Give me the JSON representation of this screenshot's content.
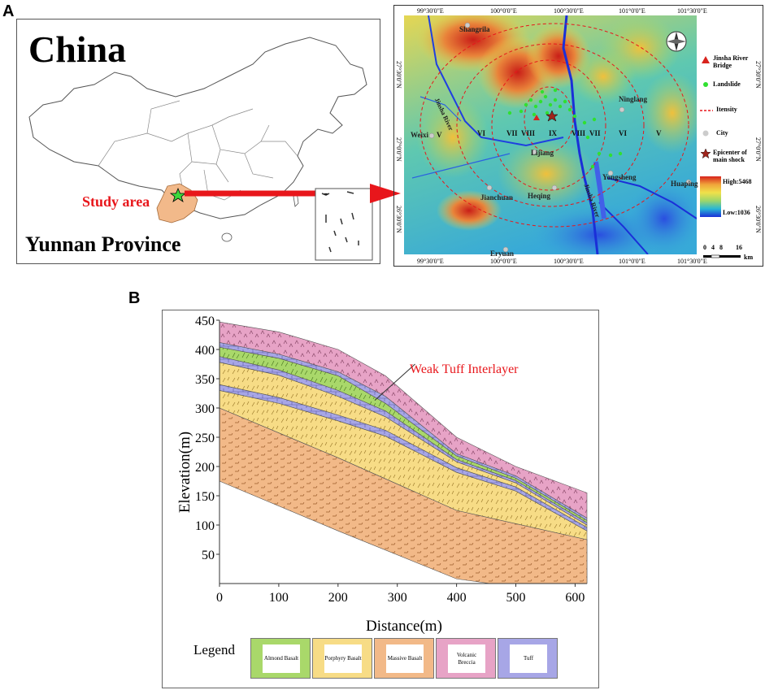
{
  "panel_a": {
    "label": "A",
    "china_map": {
      "title": "China",
      "study_area_label": "Study area",
      "province_label": "Yunnan Province"
    },
    "study_map": {
      "top_coords": [
        "99°30'0\"E",
        "100°0'0\"E",
        "100°30'0\"E",
        "101°0'0\"E",
        "101°30'0\"E"
      ],
      "bottom_coords": [
        "99°30'0\"E",
        "100°0'0\"E",
        "100°30'0\"E",
        "101°0'0\"E",
        "101°30'0\"E"
      ],
      "left_coords": [
        "27°30'0\"N",
        "27°0'0\"N",
        "26°30'0\"N"
      ],
      "right_coords": [
        "27°30'0\"N",
        "27°0'0\"N",
        "26°30'0\"N"
      ],
      "places": {
        "shangrila": "Shangrila",
        "weixi": "Weixi",
        "ninglang": "Ninglang",
        "lijiang": "Lijiang",
        "yongsheng": "Yongsheng",
        "jianchuan": "Jianchuan",
        "heqing": "Heqing",
        "eryuan": "Eryuan",
        "huaping": "Huaping"
      },
      "rivers": {
        "jinsha_west": "Jinsha River",
        "jinsha_south": "Jinsha River"
      },
      "zones": [
        "V",
        "VI",
        "VII",
        "VIII",
        "IX",
        "VIII",
        "VII",
        "VI",
        "V"
      ],
      "legend": {
        "bridge": "Jinsha River Bridge",
        "landslide": "Landslide",
        "intensity": "Itensity",
        "city": "City",
        "epicenter": "Epicenter of main shock"
      },
      "elevation_high": "High:5468",
      "elevation_low": "Low:1036",
      "scale_ticks": [
        "0",
        "4",
        "8",
        "16"
      ],
      "scale_unit": "km",
      "colors": {
        "low": "#1a2fd8",
        "mid_low": "#27b6d6",
        "mid": "#9ed66a",
        "mid_high": "#f0e14a",
        "high": "#d8231d",
        "intensity_line": "#e8161b",
        "landslide": "#30e030",
        "bridge": "#d8231d",
        "epicenter": "#a0241c"
      }
    }
  },
  "panel_b": {
    "label": "B",
    "annotation": "Weak Tuff Interlayer",
    "legend_title": "Legend",
    "legend_items": [
      {
        "name": "Almond Basalt",
        "color": "#a9d86a"
      },
      {
        "name": "Porphyry Basalt",
        "color": "#f7dc86"
      },
      {
        "name": "Massive Basalt",
        "color": "#f2b988"
      },
      {
        "name": "Volcanic Breccia",
        "color": "#e7a3c6"
      },
      {
        "name": "Tuff",
        "color": "#a7a6e6"
      }
    ],
    "chart_data": {
      "type": "area",
      "xlabel": "Distance(m)",
      "ylabel": "Elevation(m)",
      "xlim": [
        0,
        620
      ],
      "ylim": [
        0,
        450
      ],
      "xticks": [
        "0",
        "100",
        "200",
        "300",
        "400",
        "500",
        "600"
      ],
      "yticks": [
        "450",
        "400",
        "350",
        "300",
        "250",
        "200",
        "150",
        "100",
        "50"
      ],
      "layers_top_down": [
        "Volcanic Breccia",
        "Tuff",
        "Almond Basalt",
        "Tuff",
        "Porphyry Basalt",
        "Tuff",
        "Porphyry Basalt",
        "Tuff",
        "Massive Basalt"
      ],
      "surface_profile": {
        "x": [
          0,
          100,
          200,
          280,
          400,
          500,
          620
        ],
        "y": [
          447,
          430,
          400,
          355,
          250,
          200,
          155
        ]
      },
      "massive_basalt_top": {
        "x": [
          0,
          200,
          400,
          620
        ],
        "y": [
          300,
          215,
          125,
          75
        ]
      }
    }
  }
}
